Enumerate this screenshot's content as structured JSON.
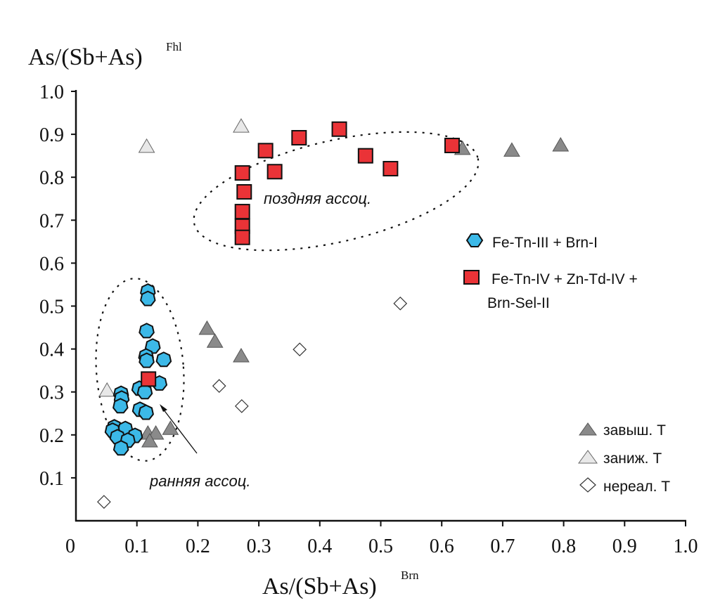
{
  "chart_data": {
    "type": "scatter",
    "title": "",
    "xlabel": "As/(Sb+As)",
    "xlabel_sup": "Brn",
    "ylabel": "As/(Sb+As)",
    "ylabel_sup": "Fhl",
    "xlim": [
      0,
      1.0
    ],
    "ylim": [
      0,
      1.0
    ],
    "x_ticks": [
      "0",
      "0.1",
      "0.2",
      "0.3",
      "0.4",
      "0.5",
      "0.6",
      "0.7",
      "0.8",
      "0.9",
      "1.0"
    ],
    "y_ticks": [
      "0.1",
      "0.2",
      "0.3",
      "0.4",
      "0.5",
      "0.6",
      "0.7",
      "0.8",
      "0.9",
      "1.0"
    ],
    "grid": false,
    "colors": {
      "blue": "#3cb9e8",
      "red": "#ea3337",
      "dark_triangle": "#8a8a8a",
      "light_triangle": "#e8e8e8",
      "diamond": "#ffffff"
    },
    "series": [
      {
        "name": "Fe-Tn-III + Brn-I",
        "marker": "hexagon",
        "points": [
          [
            0.118,
            0.534
          ],
          [
            0.118,
            0.517
          ],
          [
            0.116,
            0.442
          ],
          [
            0.126,
            0.406
          ],
          [
            0.115,
            0.383
          ],
          [
            0.116,
            0.373
          ],
          [
            0.144,
            0.375
          ],
          [
            0.137,
            0.32
          ],
          [
            0.104,
            0.308
          ],
          [
            0.113,
            0.3
          ],
          [
            0.074,
            0.296
          ],
          [
            0.075,
            0.285
          ],
          [
            0.073,
            0.267
          ],
          [
            0.105,
            0.259
          ],
          [
            0.115,
            0.252
          ],
          [
            0.063,
            0.218
          ],
          [
            0.081,
            0.214
          ],
          [
            0.06,
            0.21
          ],
          [
            0.097,
            0.198
          ],
          [
            0.068,
            0.195
          ],
          [
            0.085,
            0.187
          ],
          [
            0.074,
            0.169
          ]
        ]
      },
      {
        "name": "Fe-Tn-IV + Zn-Td-IV + Brn-Sel-II",
        "marker": "square",
        "points": [
          [
            0.273,
            0.81
          ],
          [
            0.276,
            0.766
          ],
          [
            0.273,
            0.72
          ],
          [
            0.273,
            0.686
          ],
          [
            0.273,
            0.66
          ],
          [
            0.311,
            0.862
          ],
          [
            0.326,
            0.813
          ],
          [
            0.366,
            0.892
          ],
          [
            0.432,
            0.912
          ],
          [
            0.475,
            0.85
          ],
          [
            0.516,
            0.82
          ],
          [
            0.617,
            0.874
          ],
          [
            0.119,
            0.33
          ]
        ]
      },
      {
        "name": "завыш. T",
        "marker": "triangle-dark",
        "points": [
          [
            0.215,
            0.447
          ],
          [
            0.228,
            0.417
          ],
          [
            0.271,
            0.383
          ],
          [
            0.155,
            0.214
          ],
          [
            0.118,
            0.203
          ],
          [
            0.131,
            0.203
          ],
          [
            0.121,
            0.185
          ],
          [
            0.634,
            0.866
          ],
          [
            0.715,
            0.862
          ],
          [
            0.795,
            0.874
          ]
        ]
      },
      {
        "name": "заниж. T",
        "marker": "triangle-light",
        "points": [
          [
            0.271,
            0.918
          ],
          [
            0.116,
            0.871
          ],
          [
            0.051,
            0.303
          ]
        ]
      },
      {
        "name": "нереал. T",
        "marker": "diamond",
        "points": [
          [
            0.046,
            0.044
          ],
          [
            0.235,
            0.314
          ],
          [
            0.272,
            0.267
          ],
          [
            0.367,
            0.399
          ],
          [
            0.532,
            0.506
          ]
        ]
      }
    ],
    "annotations": {
      "late": "поздняя ассоц.",
      "early": "ранняя ассоц."
    },
    "legend": {
      "placement": "right",
      "main": [
        "Fe-Tn-III + Brn-I",
        "Fe-Tn-IV + Zn-Td-IV +",
        "Brn-Sel-II"
      ],
      "temperature": [
        "завыш. T",
        "заниж. T",
        "нереал. T"
      ]
    }
  }
}
